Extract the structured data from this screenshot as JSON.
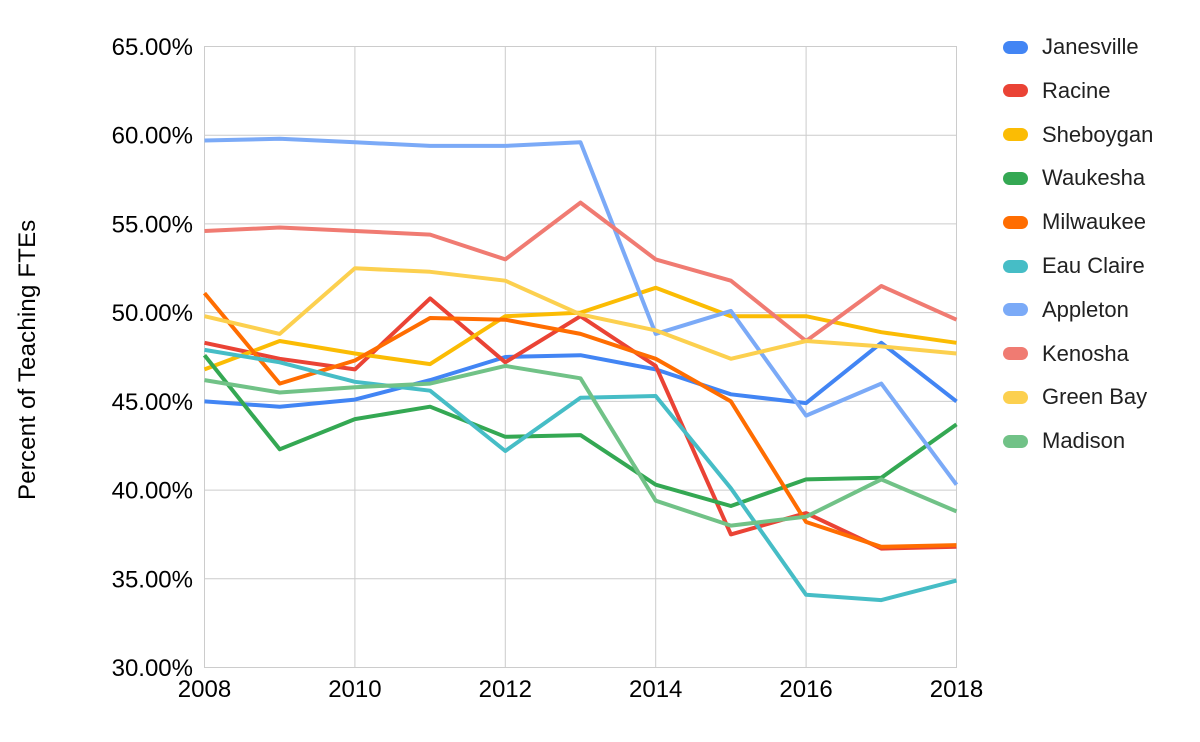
{
  "chart_data": {
    "type": "line",
    "ylabel": "Percent of Teaching FTEs",
    "ylim": [
      30,
      65
    ],
    "grid": true,
    "legend_position": "right",
    "grid_color": "#cccccc",
    "axis_text_color": "#000000",
    "x": [
      2008,
      2009,
      2010,
      2011,
      2012,
      2013,
      2014,
      2015,
      2016,
      2017,
      2018
    ],
    "x_tick_labels": [
      "2008",
      "2010",
      "2012",
      "2014",
      "2016",
      "2018"
    ],
    "y_tick_labels": [
      "30.00%",
      "35.00%",
      "40.00%",
      "45.00%",
      "50.00%",
      "55.00%",
      "60.00%",
      "65.00%"
    ],
    "series": [
      {
        "name": "Janesville",
        "color": "#4285F4",
        "values": [
          45.0,
          44.7,
          45.1,
          46.2,
          47.5,
          47.6,
          46.8,
          45.4,
          44.9,
          48.3,
          45.0
        ]
      },
      {
        "name": "Racine",
        "color": "#EA4335",
        "values": [
          48.3,
          47.4,
          46.8,
          50.8,
          47.2,
          49.8,
          47.0,
          37.5,
          38.7,
          36.7,
          36.8
        ]
      },
      {
        "name": "Sheboygan",
        "color": "#FBBC04",
        "values": [
          46.8,
          48.4,
          47.7,
          47.1,
          49.8,
          50.0,
          51.4,
          49.8,
          49.8,
          48.9,
          48.3
        ]
      },
      {
        "name": "Waukesha",
        "color": "#34A853",
        "values": [
          47.6,
          42.3,
          44.0,
          44.7,
          43.0,
          43.1,
          40.3,
          39.1,
          40.6,
          40.7,
          43.7
        ]
      },
      {
        "name": "Milwaukee",
        "color": "#FF6D01",
        "values": [
          51.1,
          46.0,
          47.3,
          49.7,
          49.6,
          48.8,
          47.4,
          45.0,
          38.2,
          36.8,
          36.9
        ]
      },
      {
        "name": "Eau Claire",
        "color": "#46BDC6",
        "values": [
          47.9,
          47.2,
          46.1,
          45.6,
          42.2,
          45.2,
          45.3,
          40.1,
          34.1,
          33.8,
          34.9
        ]
      },
      {
        "name": "Appleton",
        "color": "#7BAAF7",
        "values": [
          59.7,
          59.8,
          59.6,
          59.4,
          59.4,
          59.6,
          48.8,
          50.1,
          44.2,
          46.0,
          40.3
        ]
      },
      {
        "name": "Kenosha",
        "color": "#F07B72",
        "values": [
          54.6,
          54.8,
          54.6,
          54.4,
          53.0,
          56.2,
          53.0,
          51.8,
          48.4,
          51.5,
          49.6
        ]
      },
      {
        "name": "Green Bay",
        "color": "#FCD04F",
        "values": [
          49.8,
          48.8,
          52.5,
          52.3,
          51.8,
          49.9,
          49.0,
          47.4,
          48.4,
          48.1,
          47.7
        ]
      },
      {
        "name": "Madison",
        "color": "#71C287",
        "values": [
          46.2,
          45.5,
          45.8,
          46.0,
          47.0,
          46.3,
          39.4,
          38.0,
          38.5,
          40.6,
          38.8
        ]
      }
    ]
  }
}
